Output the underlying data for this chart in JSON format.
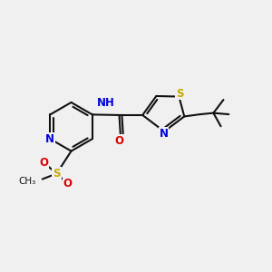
{
  "bg_color": "#f0f0f0",
  "bond_color": "#111111",
  "bond_lw": 1.5,
  "atom_colors": {
    "N": "#0000dd",
    "O": "#dd0000",
    "S": "#c8a800",
    "C": "#111111"
  },
  "fs": 8.5,
  "fss": 7.5,
  "xlim": [
    0,
    10
  ],
  "ylim": [
    0,
    10
  ],
  "figsize": [
    3.0,
    3.0
  ],
  "dpi": 100,
  "dsep": 0.11
}
